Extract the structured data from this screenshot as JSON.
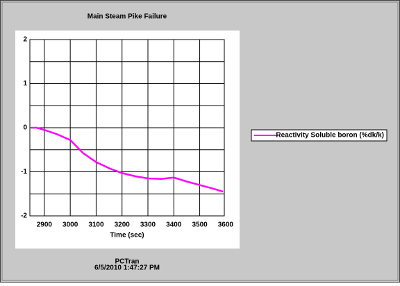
{
  "chart_data": {
    "type": "line",
    "title": "Main Steam Pike Failure",
    "x_label": "Time (sec)",
    "x": [
      2850,
      2870,
      2900,
      2950,
      3000,
      3020,
      3050,
      3100,
      3150,
      3200,
      3250,
      3300,
      3350,
      3400,
      3450,
      3500,
      3550,
      3590
    ],
    "series": [
      {
        "name": "Reactivity Soluble boron (%dk/k)",
        "color": "#ff00ff",
        "values": [
          0,
          0,
          -0.05,
          -0.15,
          -0.28,
          -0.4,
          -0.58,
          -0.78,
          -0.92,
          -1.03,
          -1.1,
          -1.15,
          -1.16,
          -1.13,
          -1.22,
          -1.3,
          -1.38,
          -1.45
        ]
      }
    ],
    "xlim": [
      2844,
      3595
    ],
    "xticks": [
      2900,
      3000,
      3100,
      3200,
      3300,
      3400,
      3500,
      3600
    ],
    "ylim": [
      -2,
      2
    ],
    "yticks": [
      -2,
      -1,
      0,
      1,
      2
    ],
    "yminor": [
      -1.5,
      -0.5,
      0.5,
      1.5
    ],
    "grid": true,
    "legend": "right",
    "footer": [
      "PCTran",
      "6/5/2010 1:47:27 PM"
    ]
  }
}
